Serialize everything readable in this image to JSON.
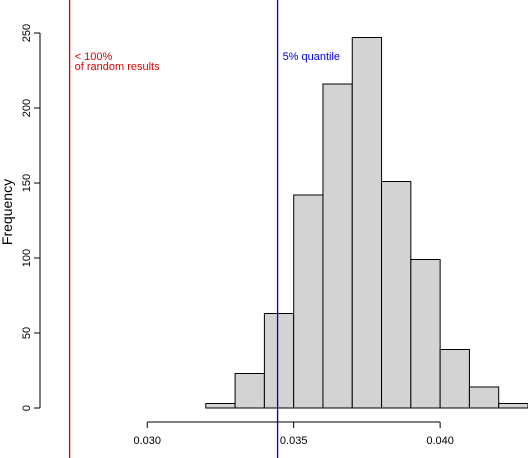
{
  "chart_data": {
    "type": "bar",
    "subtype": "histogram",
    "ylabel": "Frequency",
    "xlim": [
      0.0261,
      0.043
    ],
    "ylim": [
      0,
      250
    ],
    "x_ticks": [
      0.03,
      0.035,
      0.04
    ],
    "x_tick_labels": [
      "0.030",
      "0.035",
      "0.040"
    ],
    "y_ticks": [
      0,
      50,
      100,
      150,
      200,
      250
    ],
    "y_tick_labels": [
      "0",
      "50",
      "100",
      "150",
      "200",
      "250"
    ],
    "bins": [
      {
        "start": 0.032,
        "end": 0.033,
        "count": 3
      },
      {
        "start": 0.033,
        "end": 0.034,
        "count": 23
      },
      {
        "start": 0.034,
        "end": 0.035,
        "count": 63
      },
      {
        "start": 0.035,
        "end": 0.036,
        "count": 142
      },
      {
        "start": 0.036,
        "end": 0.037,
        "count": 216
      },
      {
        "start": 0.037,
        "end": 0.038,
        "count": 247
      },
      {
        "start": 0.038,
        "end": 0.039,
        "count": 151
      },
      {
        "start": 0.039,
        "end": 0.04,
        "count": 99
      },
      {
        "start": 0.04,
        "end": 0.041,
        "count": 39
      },
      {
        "start": 0.041,
        "end": 0.042,
        "count": 14
      },
      {
        "start": 0.042,
        "end": 0.043,
        "count": 3
      }
    ],
    "lines": [
      {
        "x": 0.02735,
        "color": "#dd0000",
        "label_line1": "< 100%",
        "label_line2": "of random results"
      },
      {
        "x": 0.03445,
        "color": "#0000cc",
        "label_line1": "5% quantile"
      }
    ],
    "grid": false,
    "legend": "none"
  }
}
